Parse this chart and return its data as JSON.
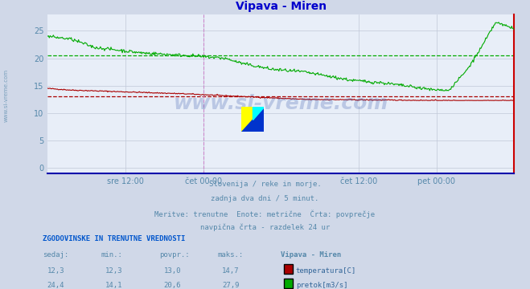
{
  "title": "Vipava - Miren",
  "title_color": "#0000cc",
  "bg_color": "#d0d8e8",
  "plot_bg_color": "#e8eef8",
  "x_labels": [
    "sre 12:00",
    "čet 00:00",
    "čet 12:00",
    "pet 00:00"
  ],
  "x_label_color": "#5588aa",
  "grid_color": "#c0c8d8",
  "temp_color": "#aa0000",
  "flow_color": "#00aa00",
  "flow_avg": 20.6,
  "temp_avg": 13.0,
  "vline_color": "#cc88cc",
  "axis_bottom_color": "#0000aa",
  "axis_right_color": "#cc0000",
  "watermark_text": "www.si-vreme.com",
  "watermark_color": "#3355aa",
  "watermark_alpha": 0.25,
  "subtitle_lines": [
    "Slovenija / reke in morje.",
    "zadnja dva dni / 5 minut.",
    "Meritve: trenutne  Enote: metrične  Črta: povprečje",
    "navpična črta - razdelek 24 ur"
  ],
  "subtitle_color": "#5588aa",
  "table_header": "ZGODOVINSKE IN TRENUTNE VREDNOSTI",
  "table_header_color": "#0055cc",
  "table_col_headers": [
    "sedaj:",
    "min.:",
    "povpr.:",
    "maks.:",
    "Vipava - Miren"
  ],
  "table_col_color": "#5588aa",
  "temp_row": [
    "12,3",
    "12,3",
    "13,0",
    "14,7"
  ],
  "flow_row": [
    "24,4",
    "14,1",
    "20,6",
    "27,9"
  ],
  "temp_label": "temperatura[C]",
  "flow_label": "pretok[m3/s]",
  "legend_color": "#336699",
  "n_points": 576,
  "ylim_min": -1,
  "ylim_max": 28
}
